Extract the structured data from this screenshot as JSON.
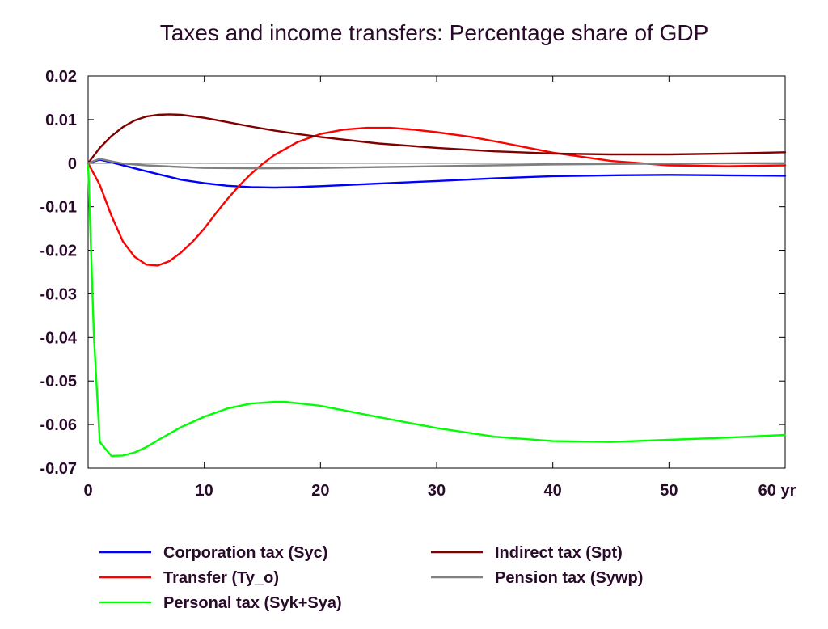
{
  "chart_data": {
    "type": "line",
    "title": "Taxes and income transfers: Percentage share of GDP",
    "xlabel": "",
    "ylabel": "",
    "xlim": [
      0,
      60
    ],
    "ylim": [
      -0.07,
      0.02
    ],
    "x_ticks": [
      0,
      10,
      20,
      30,
      40,
      50,
      60
    ],
    "x_tick_labels": [
      "0",
      "10",
      "20",
      "30",
      "40",
      "50",
      "60 yr"
    ],
    "y_ticks": [
      0.02,
      0.01,
      0,
      -0.01,
      -0.02,
      -0.03,
      -0.04,
      -0.05,
      -0.06,
      -0.07
    ],
    "y_tick_labels": [
      "0.02",
      "0.01",
      "0",
      "-0.01",
      "-0.02",
      "-0.03",
      "-0.04",
      "-0.05",
      "-0.06",
      "-0.07"
    ],
    "grid": false,
    "legend_position": "bottom",
    "series": [
      {
        "name": "Corporation tax (Syc)",
        "color": "#0000ff",
        "x": [
          0,
          1,
          2,
          4,
          6,
          8,
          10,
          12,
          14,
          16,
          18,
          20,
          25,
          30,
          35,
          40,
          45,
          50,
          55,
          60
        ],
        "y": [
          0,
          0.0008,
          0.0002,
          -0.0012,
          -0.0025,
          -0.0038,
          -0.0046,
          -0.0052,
          -0.0055,
          -0.0056,
          -0.0055,
          -0.0053,
          -0.0047,
          -0.0041,
          -0.0035,
          -0.003,
          -0.0028,
          -0.0027,
          -0.0028,
          -0.0029
        ]
      },
      {
        "name": "Transfer (Ty_o)",
        "color": "#ff0000",
        "x": [
          0,
          1,
          2,
          3,
          4,
          5,
          6,
          7,
          8,
          9,
          10,
          11,
          12,
          13,
          14,
          15,
          16,
          18,
          20,
          22,
          24,
          26,
          28,
          30,
          33,
          36,
          40,
          45,
          50,
          55,
          60
        ],
        "y": [
          0,
          -0.005,
          -0.012,
          -0.018,
          -0.0215,
          -0.0233,
          -0.0235,
          -0.0225,
          -0.0205,
          -0.018,
          -0.015,
          -0.0115,
          -0.0082,
          -0.0052,
          -0.0025,
          -0.0002,
          0.0018,
          0.0048,
          0.0067,
          0.0077,
          0.0081,
          0.0081,
          0.0077,
          0.0071,
          0.006,
          0.0045,
          0.0024,
          0.0005,
          -0.0005,
          -0.0007,
          -0.0005
        ]
      },
      {
        "name": "Personal tax (Syk+Sya)",
        "color": "#00ff00",
        "x": [
          0,
          0.5,
          1,
          2,
          3,
          4,
          5,
          6,
          8,
          10,
          12,
          14,
          16,
          17,
          18,
          20,
          25,
          30,
          35,
          40,
          45,
          50,
          55,
          60
        ],
        "y": [
          0,
          -0.04,
          -0.064,
          -0.0672,
          -0.0671,
          -0.0664,
          -0.0652,
          -0.0636,
          -0.0606,
          -0.0582,
          -0.0563,
          -0.0552,
          -0.0548,
          -0.0548,
          -0.0551,
          -0.0557,
          -0.0583,
          -0.0608,
          -0.0628,
          -0.0638,
          -0.064,
          -0.0635,
          -0.063,
          -0.0624
        ]
      },
      {
        "name": "Indirect tax (Spt)",
        "color": "#800000",
        "x": [
          0,
          1,
          2,
          3,
          4,
          5,
          6,
          7,
          8,
          10,
          12,
          14,
          16,
          18,
          20,
          25,
          30,
          35,
          40,
          45,
          50,
          55,
          60
        ],
        "y": [
          0,
          0.0035,
          0.0062,
          0.0083,
          0.0098,
          0.0107,
          0.0111,
          0.0112,
          0.0111,
          0.0104,
          0.0094,
          0.0084,
          0.0075,
          0.0067,
          0.006,
          0.0045,
          0.0035,
          0.0027,
          0.0022,
          0.002,
          0.002,
          0.0022,
          0.0025
        ]
      },
      {
        "name": "Pension tax (Sywp)",
        "color": "#808080",
        "x": [
          0,
          1,
          2,
          3,
          5,
          8,
          10,
          15,
          20,
          30,
          40,
          50,
          60
        ],
        "y": [
          0,
          0.001,
          0.0004,
          -0.0001,
          -0.0005,
          -0.0009,
          -0.0011,
          -0.0012,
          -0.0011,
          -0.0007,
          -0.0003,
          -0.0001,
          0
        ]
      }
    ]
  }
}
